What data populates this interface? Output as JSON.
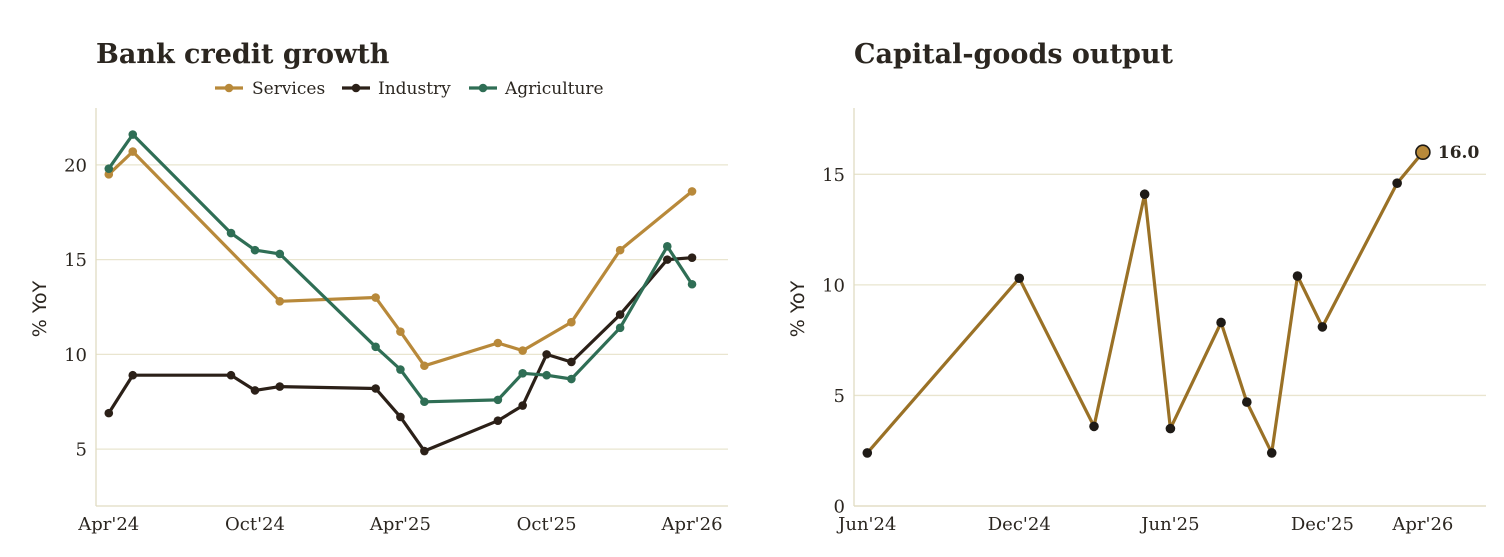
{
  "colors": {
    "grid": "#e9e5cf",
    "axis": "#e0dcc2",
    "services": "#b8893a",
    "industry": "#2b2018",
    "agriculture": "#2f6e55",
    "capgoods": "#9a7126",
    "marker": "#1e1a16"
  },
  "chart_data": [
    {
      "type": "line",
      "title": "Bank credit growth",
      "ylabel": "% YoY",
      "xlim": [
        "2024-03-16",
        "2026-05-16"
      ],
      "ylim": [
        2,
        23
      ],
      "yticks": [
        5,
        10,
        15,
        20
      ],
      "xticks": [
        {
          "date": "2024-04-01",
          "label": "Apr'24"
        },
        {
          "date": "2024-10-01",
          "label": "Oct'24"
        },
        {
          "date": "2025-04-01",
          "label": "Apr'25"
        },
        {
          "date": "2025-10-01",
          "label": "Oct'25"
        },
        {
          "date": "2026-04-01",
          "label": "Apr'26"
        }
      ],
      "legend_position": "top-center",
      "grid": "horizontal",
      "series": [
        {
          "name": "Services",
          "color_key": "services",
          "points": [
            [
              "2024-04-01",
              19.5
            ],
            [
              "2024-05-01",
              20.7
            ],
            [
              "2024-11-01",
              12.8
            ],
            [
              "2025-03-01",
              13.0
            ],
            [
              "2025-04-01",
              11.2
            ],
            [
              "2025-05-01",
              9.4
            ],
            [
              "2025-08-01",
              10.6
            ],
            [
              "2025-09-01",
              10.2
            ],
            [
              "2025-11-01",
              11.7
            ],
            [
              "2026-01-01",
              15.5
            ],
            [
              "2026-04-01",
              18.6
            ]
          ]
        },
        {
          "name": "Industry",
          "color_key": "industry",
          "points": [
            [
              "2024-04-01",
              6.9
            ],
            [
              "2024-05-01",
              8.9
            ],
            [
              "2024-09-01",
              8.9
            ],
            [
              "2024-10-01",
              8.1
            ],
            [
              "2024-11-01",
              8.3
            ],
            [
              "2025-03-01",
              8.2
            ],
            [
              "2025-04-01",
              6.7
            ],
            [
              "2025-05-01",
              4.9
            ],
            [
              "2025-08-01",
              6.5
            ],
            [
              "2025-09-01",
              7.3
            ],
            [
              "2025-10-01",
              10.0
            ],
            [
              "2025-11-01",
              9.6
            ],
            [
              "2026-01-01",
              12.1
            ],
            [
              "2026-03-01",
              15.0
            ],
            [
              "2026-04-01",
              15.1
            ]
          ]
        },
        {
          "name": "Agriculture",
          "color_key": "agriculture",
          "points": [
            [
              "2024-04-01",
              19.8
            ],
            [
              "2024-05-01",
              21.6
            ],
            [
              "2024-09-01",
              16.4
            ],
            [
              "2024-10-01",
              15.5
            ],
            [
              "2024-11-01",
              15.3
            ],
            [
              "2025-03-01",
              10.4
            ],
            [
              "2025-04-01",
              9.2
            ],
            [
              "2025-05-01",
              7.5
            ],
            [
              "2025-08-01",
              7.6
            ],
            [
              "2025-09-01",
              9.0
            ],
            [
              "2025-10-01",
              8.9
            ],
            [
              "2025-11-01",
              8.7
            ],
            [
              "2026-01-01",
              11.4
            ],
            [
              "2026-03-01",
              15.7
            ],
            [
              "2026-04-01",
              13.7
            ]
          ]
        }
      ]
    },
    {
      "type": "line",
      "title": "Capital-goods output",
      "ylabel": "% YoY",
      "xlim": [
        "2024-05-16",
        "2026-06-16"
      ],
      "ylim": [
        0,
        18
      ],
      "yticks": [
        0,
        5,
        10,
        15
      ],
      "xticks": [
        {
          "date": "2024-06-01",
          "label": "Jun'24"
        },
        {
          "date": "2024-12-01",
          "label": "Dec'24"
        },
        {
          "date": "2025-06-01",
          "label": "Jun'25"
        },
        {
          "date": "2025-12-01",
          "label": "Dec'25"
        },
        {
          "date": "2026-04-01",
          "label": "Apr'26"
        }
      ],
      "grid": "horizontal",
      "series": [
        {
          "color_key": "capgoods",
          "points": [
            [
              "2024-06-01",
              2.4
            ],
            [
              "2024-12-01",
              10.3
            ],
            [
              "2025-03-01",
              3.6
            ],
            [
              "2025-05-01",
              14.1
            ],
            [
              "2025-06-01",
              3.5
            ],
            [
              "2025-08-01",
              8.3
            ],
            [
              "2025-09-01",
              4.7
            ],
            [
              "2025-10-01",
              2.4
            ],
            [
              "2025-11-01",
              10.4
            ],
            [
              "2025-12-01",
              8.1
            ],
            [
              "2026-03-01",
              14.6
            ],
            [
              "2026-04-01",
              16.0
            ]
          ]
        }
      ],
      "annotation": {
        "date": "2026-04-01",
        "value": 16.0,
        "label": "16.0"
      }
    }
  ]
}
